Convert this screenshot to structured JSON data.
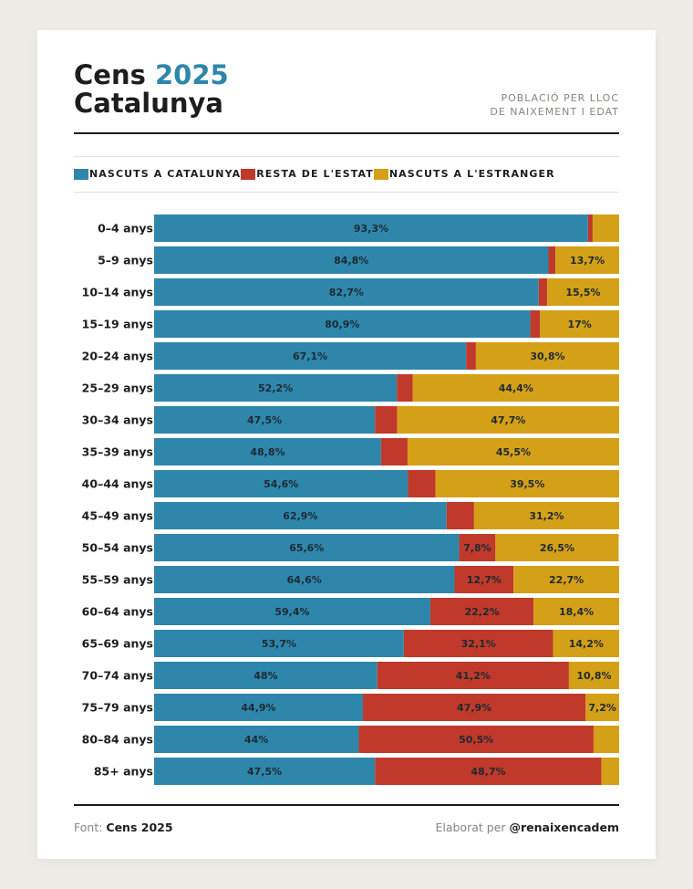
{
  "header": {
    "title_line1_prefix": "Cens ",
    "title_line1_accent": "2025",
    "title_line2": "Catalunya",
    "subtitle_line1": "POBLACIÓ PER LLOC",
    "subtitle_line2": "DE NAIXEMENT I EDAT"
  },
  "footer": {
    "source_prefix": "Font: ",
    "source_name": "Cens 2025",
    "credit_prefix": "Elaborat per ",
    "credit_handle": "@renaixencadem"
  },
  "colors": {
    "catalunya": "#2e86ab",
    "estat": "#c0392b",
    "estranger": "#d4a017",
    "accent": "#2e86ab"
  },
  "chart_data": {
    "type": "bar",
    "orientation": "horizontal",
    "stacked": true,
    "normalized_percent": true,
    "xlim": [
      0,
      100
    ],
    "legend_position": "top",
    "grid": false,
    "categories": [
      "0–4 anys",
      "5–9 anys",
      "10–14 anys",
      "15–19 anys",
      "20–24 anys",
      "25–29 anys",
      "30–34 anys",
      "35–39 anys",
      "40–44 anys",
      "45–49 anys",
      "50–54 anys",
      "55–59 anys",
      "60–64 anys",
      "65–69 anys",
      "70–74 anys",
      "75–79 anys",
      "80–84 anys",
      "85+ anys"
    ],
    "series": [
      {
        "name": "NASCUTS A CATALUNYA",
        "color": "#2e86ab",
        "values": [
          93.3,
          84.8,
          82.7,
          80.9,
          67.1,
          52.2,
          47.5,
          48.8,
          54.6,
          62.9,
          65.6,
          64.6,
          59.4,
          53.7,
          48,
          44.9,
          44,
          47.5
        ],
        "labels": [
          "93,3%",
          "84,8%",
          "82,7%",
          "80,9%",
          "67,1%",
          "52,2%",
          "47,5%",
          "48,8%",
          "54,6%",
          "62,9%",
          "65,6%",
          "64,6%",
          "59,4%",
          "53,7%",
          "48%",
          "44,9%",
          "44%",
          "47,5%"
        ]
      },
      {
        "name": "RESTA DE L'ESTAT",
        "color": "#c0392b",
        "values": [
          1.0,
          1.5,
          1.8,
          2.1,
          2.1,
          3.4,
          4.8,
          5.7,
          5.9,
          5.9,
          7.8,
          12.7,
          22.2,
          32.1,
          41.2,
          47.9,
          50.5,
          48.7
        ],
        "labels": [
          "",
          "",
          "",
          "",
          "",
          "",
          "",
          "",
          "",
          "",
          "7,8%",
          "12,7%",
          "22,2%",
          "32,1%",
          "41,2%",
          "47,9%",
          "50,5%",
          "48,7%"
        ]
      },
      {
        "name": "NASCUTS A L'ESTRANGER",
        "color": "#d4a017",
        "values": [
          5.7,
          13.7,
          15.5,
          17,
          30.8,
          44.4,
          47.7,
          45.5,
          39.5,
          31.2,
          26.5,
          22.7,
          18.4,
          14.2,
          10.8,
          7.2,
          5.5,
          3.8
        ],
        "labels": [
          "",
          "13,7%",
          "15,5%",
          "17%",
          "30,8%",
          "44,4%",
          "47,7%",
          "45,5%",
          "39,5%",
          "31,2%",
          "26,5%",
          "22,7%",
          "18,4%",
          "14,2%",
          "10,8%",
          "7,2%",
          "",
          ""
        ]
      }
    ]
  }
}
